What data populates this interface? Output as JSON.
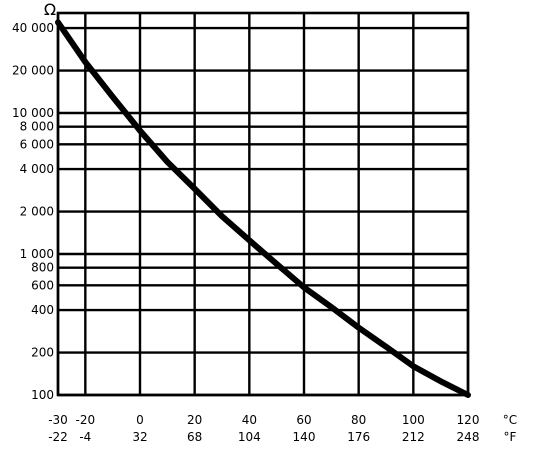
{
  "chart_data": {
    "type": "line",
    "title": "",
    "y_unit_label": "Ω",
    "x_unit_primary": "°C",
    "x_unit_secondary": "°F",
    "y_scale": "log",
    "ylim": [
      100,
      50000
    ],
    "xlim": [
      -30,
      120
    ],
    "grid": true,
    "y_ticks": [
      {
        "value": 40000,
        "label": "40 000"
      },
      {
        "value": 20000,
        "label": "20 000"
      },
      {
        "value": 10000,
        "label": "10 000"
      },
      {
        "value": 8000,
        "label": "8 000"
      },
      {
        "value": 6000,
        "label": "6 000"
      },
      {
        "value": 4000,
        "label": "4 000"
      },
      {
        "value": 2000,
        "label": "2 000"
      },
      {
        "value": 1000,
        "label": "1 000"
      },
      {
        "value": 800,
        "label": "800"
      },
      {
        "value": 600,
        "label": "600"
      },
      {
        "value": 400,
        "label": "400"
      },
      {
        "value": 200,
        "label": "200"
      },
      {
        "value": 100,
        "label": "100"
      }
    ],
    "x_ticks": [
      {
        "c": -30,
        "c_label": "-30",
        "f_label": "-22"
      },
      {
        "c": -20,
        "c_label": "-20",
        "f_label": "-4"
      },
      {
        "c": 0,
        "c_label": "0",
        "f_label": "32"
      },
      {
        "c": 20,
        "c_label": "20",
        "f_label": "68"
      },
      {
        "c": 40,
        "c_label": "40",
        "f_label": "104"
      },
      {
        "c": 60,
        "c_label": "60",
        "f_label": "140"
      },
      {
        "c": 80,
        "c_label": "80",
        "f_label": "176"
      },
      {
        "c": 100,
        "c_label": "100",
        "f_label": "212"
      },
      {
        "c": 120,
        "c_label": "120",
        "f_label": "248"
      }
    ],
    "series": [
      {
        "x": [
          -30,
          -20,
          -10,
          0,
          10,
          20,
          30,
          40,
          50,
          60,
          70,
          80,
          90,
          100,
          110,
          120
        ],
        "values": [
          44000,
          23000,
          13000,
          7500,
          4500,
          2900,
          1850,
          1250,
          850,
          580,
          420,
          300,
          220,
          160,
          125,
          100
        ]
      }
    ],
    "colors": {
      "line": "#000000",
      "grid": "#000000",
      "background": "#ffffff"
    }
  }
}
